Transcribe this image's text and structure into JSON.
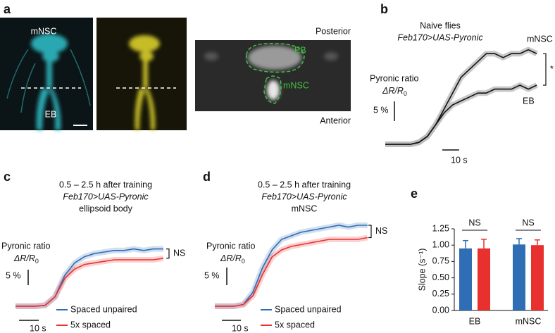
{
  "figure_labels": [
    "a",
    "b",
    "c",
    "d",
    "e"
  ],
  "panel_a": {
    "mnsc": "mNSC",
    "eb": "EB",
    "posterior": "Posterior",
    "anterior": "Anterior",
    "eb_inset": "EB",
    "mnsc_inset": "mNSC"
  },
  "chart_data": [
    {
      "type": "line",
      "title": "Naive flies",
      "subtitle": "Feb170>UAS-Pyronic",
      "ylabel": "Pyronic ratio",
      "ylabel_math": {
        "base": "ΔR/R",
        "sub": "0"
      },
      "x": [
        0,
        5,
        10,
        15,
        20,
        25,
        30,
        35,
        40,
        45,
        50,
        55,
        60,
        65,
        70,
        75,
        80,
        85,
        90
      ],
      "series": [
        {
          "name": "mNSC",
          "color": "#111111",
          "values": [
            0,
            0,
            0,
            0,
            0.5,
            2,
            5,
            9,
            13,
            17,
            19,
            21,
            23,
            23,
            22,
            23,
            23,
            24,
            23
          ]
        },
        {
          "name": "EB",
          "color": "#111111",
          "values": [
            0,
            0,
            0,
            0,
            0.5,
            2,
            5,
            8,
            10,
            11,
            12,
            13,
            13,
            14,
            14,
            14,
            15,
            14,
            15
          ]
        }
      ],
      "scale_bars": {
        "y": {
          "value": 5,
          "label": "5 %"
        },
        "x": {
          "value": 10,
          "label": "10 s"
        }
      },
      "annotation": "*"
    },
    {
      "type": "line",
      "title": "0.5 – 2.5 h after training",
      "subtitle": "Feb170>UAS-Pyronic",
      "subtitle2": "ellipsoid body",
      "ylabel": "Pyronic ratio",
      "ylabel_math": {
        "base": "ΔR/R",
        "sub": "0"
      },
      "x": [
        0,
        5,
        10,
        15,
        20,
        25,
        30,
        35,
        40,
        45,
        50,
        55,
        60,
        65,
        70,
        75
      ],
      "series": [
        {
          "name": "Spaced unpaired",
          "color": "#2f6db5",
          "values": [
            0,
            0,
            0,
            0.3,
            3,
            10,
            14,
            16,
            17,
            17.5,
            18,
            18,
            18.5,
            18,
            18.5,
            18.5
          ]
        },
        {
          "name": "5x spaced",
          "color": "#e8312f",
          "values": [
            0,
            0,
            0,
            0.3,
            3,
            9,
            12,
            13.5,
            14,
            14.5,
            15,
            15,
            15,
            15,
            15,
            15.5
          ]
        }
      ],
      "scale_bars": {
        "y": {
          "value": 5,
          "label": "5 %"
        },
        "x": {
          "value": 10,
          "label": "10 s"
        }
      },
      "annotation": "NS"
    },
    {
      "type": "line",
      "title": "0.5 – 2.5 h after training",
      "subtitle": "Feb170>UAS-Pyronic",
      "subtitle2": "mNSC",
      "ylabel": "Pyronic ratio",
      "ylabel_math": {
        "base": "ΔR/R",
        "sub": "0"
      },
      "x": [
        0,
        5,
        10,
        15,
        20,
        25,
        30,
        35,
        40,
        45,
        50,
        55,
        60,
        65,
        70,
        75,
        80
      ],
      "series": [
        {
          "name": "Spaced unpaired",
          "color": "#2f6db5",
          "values": [
            0,
            0,
            0,
            0.5,
            4,
            11,
            16,
            19,
            20,
            21,
            21.5,
            22,
            22.5,
            23,
            22.5,
            23,
            23
          ]
        },
        {
          "name": "5x spaced",
          "color": "#e8312f",
          "values": [
            0,
            0,
            0,
            0.5,
            3,
            9,
            14,
            16,
            17,
            17.5,
            18,
            18.5,
            19,
            19,
            19,
            19,
            19.5
          ]
        }
      ],
      "scale_bars": {
        "y": {
          "value": 5,
          "label": "5 %"
        },
        "x": {
          "value": 10,
          "label": "10 s"
        }
      },
      "annotation": "NS"
    },
    {
      "type": "bar",
      "ylabel": "Slope (s⁻¹)",
      "categories": [
        "EB",
        "mNSC"
      ],
      "series": [
        {
          "color": "#2f6db5",
          "values": [
            0.95,
            1.01
          ],
          "errors": [
            0.12,
            0.09
          ]
        },
        {
          "color": "#e8312f",
          "values": [
            0.95,
            1.0
          ],
          "errors": [
            0.14,
            0.08
          ]
        }
      ],
      "ylim": [
        0,
        1.25
      ],
      "yticks": [
        {
          "value": 0,
          "label": "0.00"
        },
        {
          "value": 0.25,
          "label": "0.25"
        },
        {
          "value": 0.5,
          "label": "0.50"
        },
        {
          "value": 0.75,
          "label": "0.75"
        },
        {
          "value": 1,
          "label": "1.00"
        },
        {
          "value": 1.25,
          "label": "1.25"
        }
      ],
      "annotations": [
        "NS",
        "NS"
      ]
    }
  ]
}
